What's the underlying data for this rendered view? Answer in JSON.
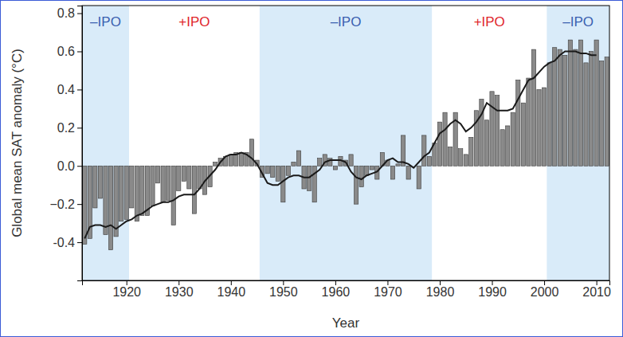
{
  "chart_data": {
    "type": "bar",
    "x_label": "Year",
    "y_label": "Global mean SAT anomaly (°C)",
    "x": [
      1912,
      1913,
      1914,
      1915,
      1916,
      1917,
      1918,
      1919,
      1920,
      1921,
      1922,
      1923,
      1924,
      1925,
      1926,
      1927,
      1928,
      1929,
      1930,
      1931,
      1932,
      1933,
      1934,
      1935,
      1936,
      1937,
      1938,
      1939,
      1940,
      1941,
      1942,
      1943,
      1944,
      1945,
      1946,
      1947,
      1948,
      1949,
      1950,
      1951,
      1952,
      1953,
      1954,
      1955,
      1956,
      1957,
      1958,
      1959,
      1960,
      1961,
      1962,
      1963,
      1964,
      1965,
      1966,
      1967,
      1968,
      1969,
      1970,
      1971,
      1972,
      1973,
      1974,
      1975,
      1976,
      1977,
      1978,
      1979,
      1980,
      1981,
      1982,
      1983,
      1984,
      1985,
      1986,
      1987,
      1988,
      1989,
      1990,
      1991,
      1992,
      1993,
      1994,
      1995,
      1996,
      1997,
      1998,
      1999,
      2000,
      2001,
      2002,
      2003,
      2004,
      2005,
      2006,
      2007,
      2008,
      2009,
      2010,
      2011,
      2012
    ],
    "series": [
      {
        "type": "bar",
        "color": "#8a8a8a",
        "values": [
          -0.41,
          -0.38,
          -0.22,
          -0.17,
          -0.36,
          -0.44,
          -0.37,
          -0.29,
          -0.28,
          -0.22,
          -0.29,
          -0.26,
          -0.26,
          -0.21,
          -0.09,
          -0.19,
          -0.18,
          -0.31,
          -0.13,
          -0.08,
          -0.12,
          -0.25,
          -0.12,
          -0.15,
          -0.11,
          0.02,
          0.04,
          0.05,
          0.06,
          0.07,
          0.07,
          0.07,
          0.14,
          0.03,
          -0.06,
          -0.04,
          -0.06,
          -0.08,
          -0.19,
          -0.05,
          0.02,
          0.08,
          -0.12,
          -0.13,
          -0.19,
          0.04,
          0.06,
          0.04,
          -0.02,
          0.05,
          0.03,
          0.06,
          -0.2,
          -0.11,
          -0.05,
          -0.02,
          -0.07,
          0.07,
          0.03,
          -0.07,
          0.01,
          0.16,
          -0.07,
          0.0,
          -0.12,
          0.16,
          0.05,
          0.12,
          0.23,
          0.28,
          0.1,
          0.28,
          0.09,
          0.06,
          0.15,
          0.29,
          0.35,
          0.24,
          0.39,
          0.37,
          0.19,
          0.21,
          0.28,
          0.45,
          0.33,
          0.46,
          0.61,
          0.4,
          0.41,
          0.54,
          0.62,
          0.61,
          0.58,
          0.66,
          0.61,
          0.66,
          0.54,
          0.6,
          0.66,
          0.55,
          0.57
        ]
      },
      {
        "type": "line",
        "color": "#1a1a1a",
        "values": [
          -0.38,
          -0.32,
          -0.31,
          -0.31,
          -0.32,
          -0.31,
          -0.33,
          -0.31,
          -0.29,
          -0.28,
          -0.26,
          -0.25,
          -0.23,
          -0.21,
          -0.2,
          -0.19,
          -0.19,
          -0.18,
          -0.16,
          -0.15,
          -0.15,
          -0.15,
          -0.12,
          -0.08,
          -0.05,
          -0.02,
          0.02,
          0.05,
          0.06,
          0.06,
          0.07,
          0.06,
          0.04,
          0.01,
          -0.04,
          -0.09,
          -0.1,
          -0.1,
          -0.08,
          -0.06,
          -0.05,
          -0.05,
          -0.06,
          -0.06,
          -0.04,
          -0.02,
          0.02,
          0.03,
          0.03,
          0.03,
          0.02,
          -0.03,
          -0.06,
          -0.07,
          -0.05,
          -0.04,
          -0.03,
          0.0,
          0.03,
          0.04,
          0.02,
          0.02,
          0.01,
          -0.01,
          0.02,
          0.05,
          0.07,
          0.12,
          0.17,
          0.19,
          0.22,
          0.24,
          0.22,
          0.18,
          0.2,
          0.23,
          0.27,
          0.33,
          0.31,
          0.29,
          0.29,
          0.29,
          0.3,
          0.35,
          0.4,
          0.45,
          0.46,
          0.49,
          0.52,
          0.54,
          0.55,
          0.58,
          0.6,
          0.6,
          0.6,
          0.59,
          0.59,
          0.58,
          0.58,
          null,
          null
        ]
      }
    ],
    "regions": [
      {
        "label": "–IPO",
        "start": 1911.5,
        "end": 1920.5,
        "shaded": true,
        "color": "#3a5fb0"
      },
      {
        "label": "+IPO",
        "start": 1920.5,
        "end": 1945.5,
        "shaded": false,
        "color": "#e0262b"
      },
      {
        "label": "–IPO",
        "start": 1945.5,
        "end": 1978.5,
        "shaded": true,
        "color": "#3a5fb0"
      },
      {
        "label": "+IPO",
        "start": 1978.5,
        "end": 2000.5,
        "shaded": false,
        "color": "#e0262b"
      },
      {
        "label": "–IPO",
        "start": 2000.5,
        "end": 2012.5,
        "shaded": true,
        "color": "#3a5fb0"
      }
    ],
    "xlim": [
      1911.5,
      2012.5
    ],
    "xticks": [
      1920,
      1930,
      1940,
      1950,
      1960,
      1970,
      1980,
      1990,
      2000,
      2010
    ],
    "ylim": [
      -0.6,
      0.84
    ],
    "yticks": [
      -0.4,
      {
        "value": -0.2,
        "label": "−0.2"
      },
      {
        "value": 0,
        "label": "0.0"
      },
      0.2,
      0.4,
      0.6,
      0.8
    ],
    "grid": false
  }
}
